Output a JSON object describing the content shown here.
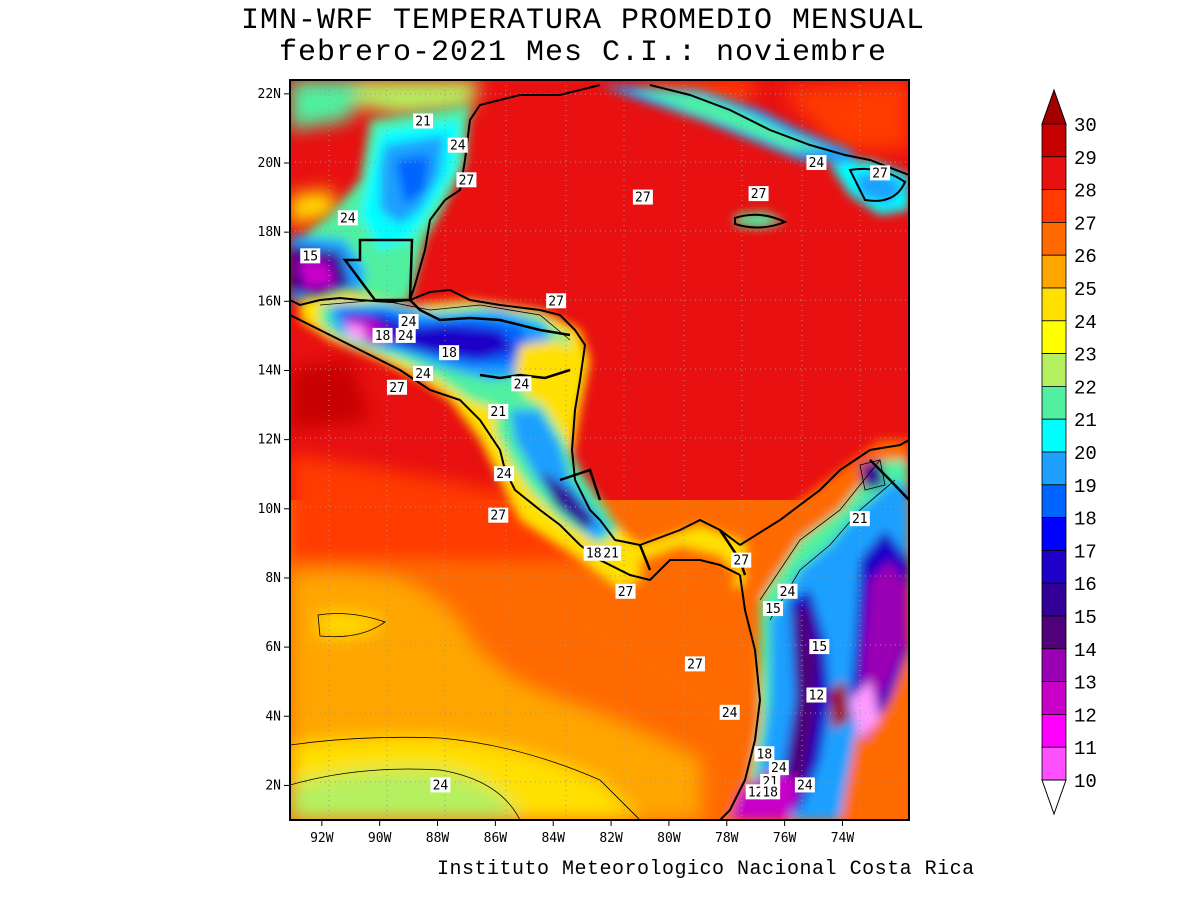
{
  "title": {
    "line1": "IMN-WRF  TEMPERATURA PROMEDIO MENSUAL",
    "line2": "febrero-2021 Mes C.I.: noviembre"
  },
  "footer": "Instituto Meteorologico Nacional Costa Rica",
  "map": {
    "lon_range": [
      -93.1,
      -71.7
    ],
    "lat_range": [
      1.0,
      22.4
    ],
    "x_ticks": [
      "92W",
      "90W",
      "88W",
      "86W",
      "84W",
      "82W",
      "80W",
      "78W",
      "76W",
      "74W"
    ],
    "y_ticks": [
      "2N",
      "4N",
      "6N",
      "8N",
      "10N",
      "12N",
      "14N",
      "16N",
      "18N",
      "20N",
      "22N"
    ],
    "grid": "dotted"
  },
  "colorbar": {
    "labels": [
      "30",
      "29",
      "28",
      "27",
      "26",
      "25",
      "24",
      "23",
      "22",
      "21",
      "20",
      "19",
      "18",
      "17",
      "16",
      "15",
      "14",
      "13",
      "12",
      "11",
      "10"
    ],
    "colors": [
      "#a30000",
      "#c70000",
      "#e81010",
      "#ff3b00",
      "#ff6a00",
      "#ffa500",
      "#ffe000",
      "#ffff00",
      "#b5f060",
      "#50f0a0",
      "#00ffff",
      "#1ea0ff",
      "#0064ff",
      "#0000ff",
      "#1e00c8",
      "#320096",
      "#500078",
      "#9a00b4",
      "#c800c8",
      "#ff00ff",
      "#ff50ff",
      "#ff9aff"
    ]
  },
  "contour_labels": [
    {
      "text": "21",
      "lon": -88.5,
      "lat": 21.2
    },
    {
      "text": "24",
      "lon": -87.3,
      "lat": 20.5
    },
    {
      "text": "27",
      "lon": -87.0,
      "lat": 19.5
    },
    {
      "text": "27",
      "lon": -80.9,
      "lat": 19.0
    },
    {
      "text": "27",
      "lon": -76.9,
      "lat": 19.1
    },
    {
      "text": "24",
      "lon": -74.9,
      "lat": 20.0
    },
    {
      "text": "27",
      "lon": -72.7,
      "lat": 19.7
    },
    {
      "text": "24",
      "lon": -91.1,
      "lat": 18.4
    },
    {
      "text": "15",
      "lon": -92.4,
      "lat": 17.3
    },
    {
      "text": "27",
      "lon": -83.9,
      "lat": 16.0
    },
    {
      "text": "24",
      "lon": -89.0,
      "lat": 15.4
    },
    {
      "text": "18",
      "lon": -89.9,
      "lat": 15.0
    },
    {
      "text": "24",
      "lon": -89.1,
      "lat": 15.0
    },
    {
      "text": "18",
      "lon": -87.6,
      "lat": 14.5
    },
    {
      "text": "24",
      "lon": -88.5,
      "lat": 13.9
    },
    {
      "text": "27",
      "lon": -89.4,
      "lat": 13.5
    },
    {
      "text": "24",
      "lon": -85.1,
      "lat": 13.6
    },
    {
      "text": "21",
      "lon": -85.9,
      "lat": 12.8
    },
    {
      "text": "24",
      "lon": -85.7,
      "lat": 11.0
    },
    {
      "text": "27",
      "lon": -85.9,
      "lat": 9.8
    },
    {
      "text": "18",
      "lon": -82.6,
      "lat": 8.7
    },
    {
      "text": "21",
      "lon": -82.0,
      "lat": 8.7
    },
    {
      "text": "27",
      "lon": -77.5,
      "lat": 8.5
    },
    {
      "text": "27",
      "lon": -81.5,
      "lat": 7.6
    },
    {
      "text": "24",
      "lon": -75.9,
      "lat": 7.6
    },
    {
      "text": "15",
      "lon": -76.4,
      "lat": 7.1
    },
    {
      "text": "21",
      "lon": -73.4,
      "lat": 9.7
    },
    {
      "text": "15",
      "lon": -74.8,
      "lat": 6.0
    },
    {
      "text": "27",
      "lon": -79.1,
      "lat": 5.5
    },
    {
      "text": "12",
      "lon": -74.9,
      "lat": 4.6
    },
    {
      "text": "24",
      "lon": -77.9,
      "lat": 4.1
    },
    {
      "text": "18",
      "lon": -76.7,
      "lat": 2.9
    },
    {
      "text": "24",
      "lon": -76.2,
      "lat": 2.5
    },
    {
      "text": "21",
      "lon": -76.5,
      "lat": 2.1
    },
    {
      "text": "12",
      "lon": -77.0,
      "lat": 1.8
    },
    {
      "text": "18",
      "lon": -76.5,
      "lat": 1.8
    },
    {
      "text": "24",
      "lon": -75.3,
      "lat": 2.0
    },
    {
      "text": "24",
      "lon": -87.9,
      "lat": 2.0
    }
  ]
}
